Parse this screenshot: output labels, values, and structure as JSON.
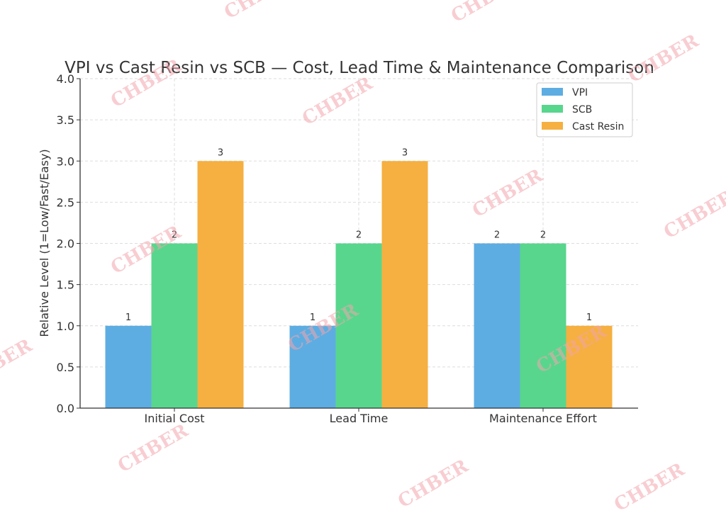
{
  "chart_data": {
    "type": "bar",
    "title": "VPI vs Cast Resin vs SCB — Cost, Lead Time & Maintenance Comparison",
    "xlabel": "",
    "ylabel": "Relative Level (1=Low/Fast/Easy)",
    "categories": [
      "Initial Cost",
      "Lead Time",
      "Maintenance Effort"
    ],
    "series": [
      {
        "name": "VPI",
        "values": [
          1,
          1,
          2
        ],
        "color": "#5DADE2"
      },
      {
        "name": "SCB",
        "values": [
          2,
          2,
          2
        ],
        "color": "#58D68D"
      },
      {
        "name": "Cast Resin",
        "values": [
          3,
          3,
          1
        ],
        "color": "#F5B041"
      }
    ],
    "ylim": [
      0,
      4
    ],
    "yticks": [
      "0.0",
      "0.5",
      "1.0",
      "1.5",
      "2.0",
      "2.5",
      "3.0",
      "3.5",
      "4.0"
    ],
    "grid": true,
    "legend": "top-right",
    "data_labels": true
  },
  "watermark": "CHBER"
}
